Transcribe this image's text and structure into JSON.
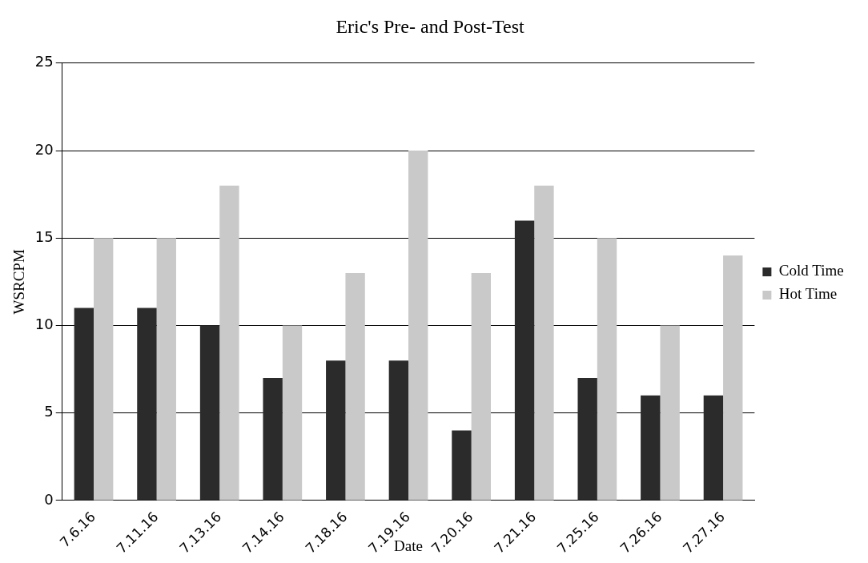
{
  "chart_data": {
    "type": "bar",
    "title": "Eric's Pre- and Post-Test",
    "xlabel": "Date",
    "ylabel": "WSRCPM",
    "categories": [
      "7.6.16",
      "7.11.16",
      "7.13.16",
      "7.14.16",
      "7.18.16",
      "7.19.16",
      "7.20.16",
      "7.21.16",
      "7.25.16",
      "7.26.16",
      "7.27.16"
    ],
    "series": [
      {
        "name": "Cold Time",
        "color": "#2b2b2b",
        "values": [
          11,
          11,
          10,
          7,
          8,
          8,
          4,
          16,
          7,
          6,
          6
        ]
      },
      {
        "name": "Hot Time",
        "color": "#c9c9c9",
        "values": [
          15,
          15,
          18,
          10,
          13,
          20,
          13,
          18,
          15,
          10,
          14
        ]
      }
    ],
    "ylim": [
      0,
      25
    ],
    "yticks": [
      0,
      5,
      10,
      15,
      20,
      25
    ],
    "grid": "y",
    "legend": "right"
  }
}
